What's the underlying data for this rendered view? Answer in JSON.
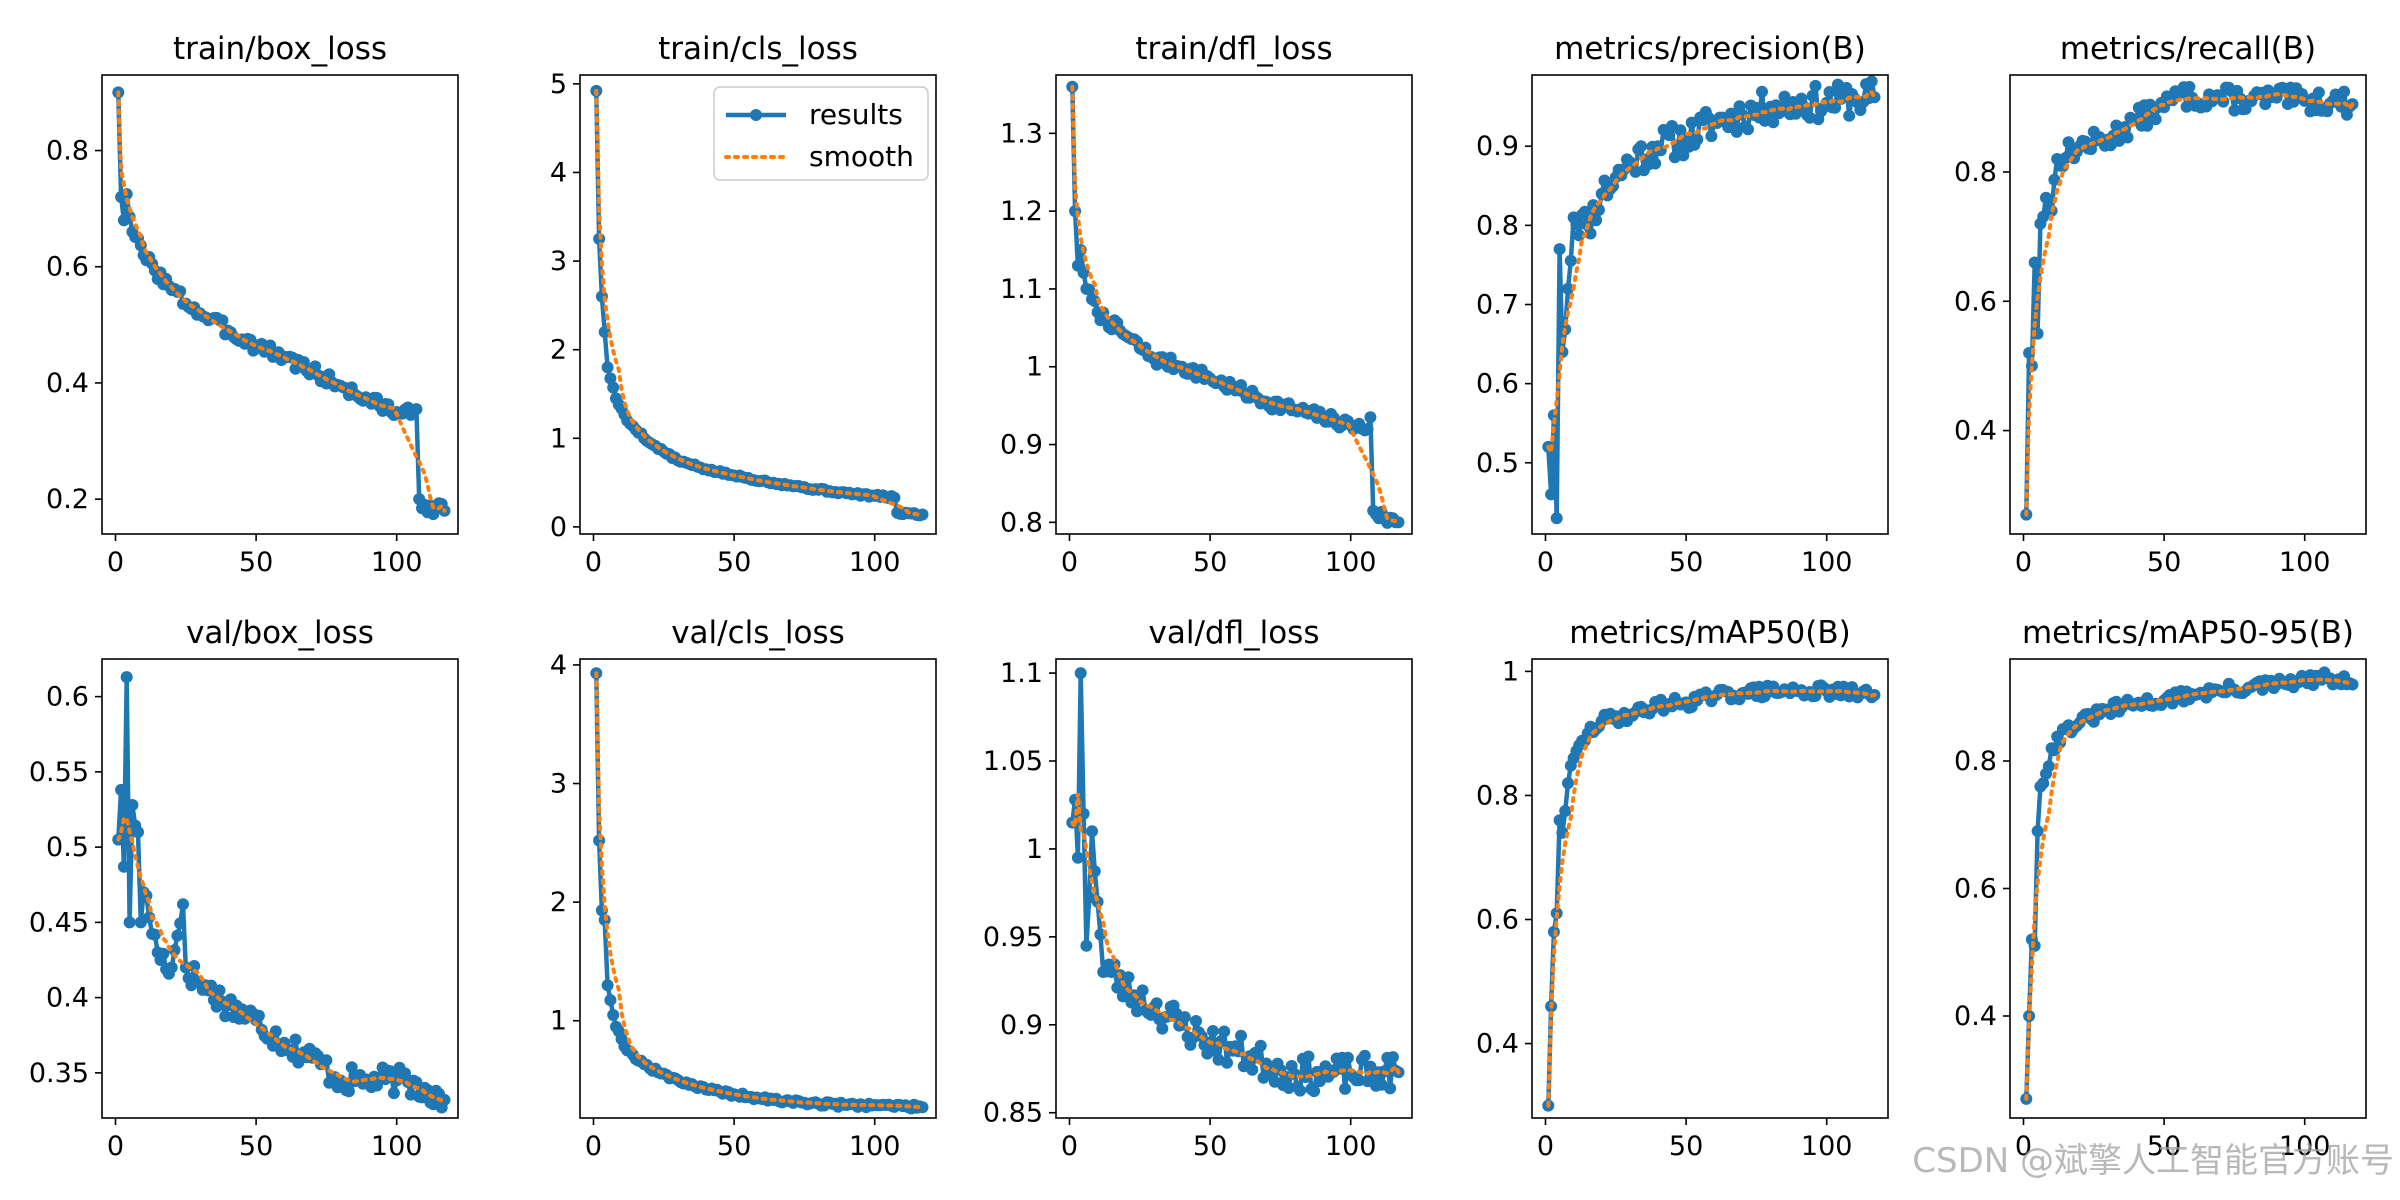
{
  "figure": {
    "legend_labels": [
      "results",
      "smooth"
    ],
    "watermark": "CSDN @斌擎人工智能官方账号",
    "colors": {
      "results": "#1f77b4",
      "smooth": "#ff7f0e",
      "axes": "#000000",
      "background": "#ffffff"
    }
  },
  "chart_data": [
    {
      "type": "line",
      "title": "train/box_loss",
      "xlim": [
        -4.8,
        121.8
      ],
      "ylim": [
        0.14,
        0.93
      ],
      "xticks": [
        0,
        50,
        100
      ],
      "yticks": [
        0.2,
        0.4,
        0.6,
        0.8
      ],
      "x_start": 1,
      "x_end": 117,
      "keypoints": [
        [
          1,
          0.9
        ],
        [
          2,
          0.72
        ],
        [
          3,
          0.68
        ],
        [
          4,
          0.725
        ],
        [
          6,
          0.66
        ],
        [
          10,
          0.62
        ],
        [
          20,
          0.56
        ],
        [
          30,
          0.52
        ],
        [
          40,
          0.49
        ],
        [
          50,
          0.465
        ],
        [
          60,
          0.445
        ],
        [
          70,
          0.42
        ],
        [
          80,
          0.395
        ],
        [
          90,
          0.37
        ],
        [
          100,
          0.35
        ],
        [
          105,
          0.345
        ],
        [
          107,
          0.355
        ],
        [
          108,
          0.2
        ],
        [
          110,
          0.19
        ],
        [
          117,
          0.18
        ]
      ],
      "noise": 0.012,
      "seed": 3,
      "legend": false
    },
    {
      "type": "line",
      "title": "train/cls_loss",
      "xlim": [
        -4.8,
        121.8
      ],
      "ylim": [
        -0.08,
        5.1
      ],
      "xticks": [
        0,
        50,
        100
      ],
      "yticks": [
        0,
        1,
        2,
        3,
        4,
        5
      ],
      "x_start": 1,
      "x_end": 117,
      "keypoints": [
        [
          1,
          4.92
        ],
        [
          2,
          3.25
        ],
        [
          3,
          2.6
        ],
        [
          4,
          2.2
        ],
        [
          5,
          1.8
        ],
        [
          8,
          1.45
        ],
        [
          12,
          1.2
        ],
        [
          20,
          0.95
        ],
        [
          30,
          0.75
        ],
        [
          40,
          0.65
        ],
        [
          50,
          0.58
        ],
        [
          60,
          0.52
        ],
        [
          70,
          0.47
        ],
        [
          80,
          0.42
        ],
        [
          90,
          0.38
        ],
        [
          100,
          0.35
        ],
        [
          107,
          0.33
        ],
        [
          108,
          0.16
        ],
        [
          117,
          0.14
        ]
      ],
      "noise": 0.015,
      "seed": 5,
      "legend": true
    },
    {
      "type": "line",
      "title": "train/dfl_loss",
      "xlim": [
        -4.8,
        121.8
      ],
      "ylim": [
        0.785,
        1.375
      ],
      "xticks": [
        0,
        50,
        100
      ],
      "yticks": [
        0.8,
        0.9,
        1.0,
        1.1,
        1.2,
        1.3
      ],
      "x_start": 1,
      "x_end": 117,
      "keypoints": [
        [
          1,
          1.36
        ],
        [
          2,
          1.2
        ],
        [
          3,
          1.13
        ],
        [
          4,
          1.15
        ],
        [
          6,
          1.1
        ],
        [
          10,
          1.07
        ],
        [
          20,
          1.04
        ],
        [
          30,
          1.01
        ],
        [
          40,
          1.0
        ],
        [
          50,
          0.985
        ],
        [
          60,
          0.97
        ],
        [
          70,
          0.955
        ],
        [
          80,
          0.945
        ],
        [
          90,
          0.935
        ],
        [
          100,
          0.925
        ],
        [
          106,
          0.92
        ],
        [
          107,
          0.935
        ],
        [
          108,
          0.815
        ],
        [
          112,
          0.805
        ],
        [
          117,
          0.8
        ]
      ],
      "noise": 0.008,
      "seed": 7,
      "legend": false
    },
    {
      "type": "line",
      "title": "metrics/precision(B)",
      "xlim": [
        -4.8,
        121.8
      ],
      "ylim": [
        0.41,
        0.99
      ],
      "xticks": [
        0,
        50,
        100
      ],
      "yticks": [
        0.5,
        0.6,
        0.7,
        0.8,
        0.9
      ],
      "x_start": 1,
      "x_end": 117,
      "keypoints": [
        [
          1,
          0.52
        ],
        [
          2,
          0.46
        ],
        [
          3,
          0.56
        ],
        [
          4,
          0.43
        ],
        [
          5,
          0.77
        ],
        [
          6,
          0.64
        ],
        [
          8,
          0.72
        ],
        [
          10,
          0.81
        ],
        [
          15,
          0.8
        ],
        [
          20,
          0.84
        ],
        [
          30,
          0.88
        ],
        [
          40,
          0.9
        ],
        [
          50,
          0.91
        ],
        [
          60,
          0.93
        ],
        [
          70,
          0.94
        ],
        [
          80,
          0.95
        ],
        [
          90,
          0.955
        ],
        [
          100,
          0.955
        ],
        [
          110,
          0.96
        ],
        [
          117,
          0.962
        ]
      ],
      "noise": 0.022,
      "seed": 11,
      "legend": false
    },
    {
      "type": "line",
      "title": "metrics/recall(B)",
      "xlim": [
        -4.8,
        121.8
      ],
      "ylim": [
        0.24,
        0.95
      ],
      "xticks": [
        0,
        50,
        100
      ],
      "yticks": [
        0.4,
        0.6,
        0.8
      ],
      "x_start": 1,
      "x_end": 117,
      "keypoints": [
        [
          1,
          0.27
        ],
        [
          2,
          0.52
        ],
        [
          3,
          0.5
        ],
        [
          4,
          0.66
        ],
        [
          5,
          0.55
        ],
        [
          6,
          0.72
        ],
        [
          8,
          0.76
        ],
        [
          10,
          0.74
        ],
        [
          12,
          0.82
        ],
        [
          20,
          0.84
        ],
        [
          30,
          0.85
        ],
        [
          40,
          0.88
        ],
        [
          50,
          0.9
        ],
        [
          55,
          0.92
        ],
        [
          60,
          0.915
        ],
        [
          70,
          0.915
        ],
        [
          80,
          0.91
        ],
        [
          90,
          0.915
        ],
        [
          100,
          0.91
        ],
        [
          110,
          0.91
        ],
        [
          117,
          0.905
        ]
      ],
      "noise": 0.018,
      "seed": 13,
      "legend": false
    },
    {
      "type": "line",
      "title": "val/box_loss",
      "xlim": [
        -4.8,
        121.8
      ],
      "ylim": [
        0.32,
        0.625
      ],
      "xticks": [
        0,
        50,
        100
      ],
      "yticks": [
        0.35,
        0.4,
        0.45,
        0.5,
        0.55,
        0.6
      ],
      "x_start": 1,
      "x_end": 117,
      "keypoints": [
        [
          1,
          0.505
        ],
        [
          2,
          0.538
        ],
        [
          3,
          0.487
        ],
        [
          4,
          0.613
        ],
        [
          5,
          0.45
        ],
        [
          6,
          0.528
        ],
        [
          8,
          0.51
        ],
        [
          9,
          0.45
        ],
        [
          10,
          0.47
        ],
        [
          15,
          0.43
        ],
        [
          20,
          0.42
        ],
        [
          24,
          0.462
        ],
        [
          25,
          0.42
        ],
        [
          30,
          0.41
        ],
        [
          40,
          0.395
        ],
        [
          50,
          0.385
        ],
        [
          60,
          0.37
        ],
        [
          70,
          0.36
        ],
        [
          80,
          0.345
        ],
        [
          90,
          0.345
        ],
        [
          100,
          0.345
        ],
        [
          110,
          0.34
        ],
        [
          117,
          0.332
        ]
      ],
      "noise": 0.009,
      "seed": 17,
      "legend": false
    },
    {
      "type": "line",
      "title": "val/cls_loss",
      "xlim": [
        -4.8,
        121.8
      ],
      "ylim": [
        0.18,
        4.05
      ],
      "xticks": [
        0,
        50,
        100
      ],
      "yticks": [
        1,
        2,
        3,
        4
      ],
      "x_start": 1,
      "x_end": 117,
      "keypoints": [
        [
          1,
          3.93
        ],
        [
          2,
          2.52
        ],
        [
          3,
          1.93
        ],
        [
          4,
          1.85
        ],
        [
          5,
          1.3
        ],
        [
          8,
          0.95
        ],
        [
          12,
          0.75
        ],
        [
          20,
          0.6
        ],
        [
          30,
          0.5
        ],
        [
          40,
          0.42
        ],
        [
          50,
          0.38
        ],
        [
          60,
          0.34
        ],
        [
          70,
          0.32
        ],
        [
          80,
          0.3
        ],
        [
          90,
          0.29
        ],
        [
          100,
          0.29
        ],
        [
          110,
          0.28
        ],
        [
          117,
          0.27
        ]
      ],
      "noise": 0.018,
      "seed": 19,
      "legend": false
    },
    {
      "type": "line",
      "title": "val/dfl_loss",
      "xlim": [
        -4.8,
        121.8
      ],
      "ylim": [
        0.847,
        1.108
      ],
      "xticks": [
        0,
        50,
        100
      ],
      "yticks": [
        0.85,
        0.9,
        0.95,
        1.0,
        1.05,
        1.1
      ],
      "x_start": 1,
      "x_end": 117,
      "keypoints": [
        [
          1,
          1.015
        ],
        [
          2,
          1.028
        ],
        [
          3,
          0.995
        ],
        [
          4,
          1.1
        ],
        [
          5,
          1.02
        ],
        [
          6,
          0.945
        ],
        [
          8,
          1.01
        ],
        [
          10,
          0.97
        ],
        [
          12,
          0.93
        ],
        [
          15,
          0.93
        ],
        [
          20,
          0.92
        ],
        [
          25,
          0.915
        ],
        [
          30,
          0.91
        ],
        [
          40,
          0.9
        ],
        [
          50,
          0.89
        ],
        [
          60,
          0.885
        ],
        [
          70,
          0.878
        ],
        [
          80,
          0.872
        ],
        [
          90,
          0.872
        ],
        [
          100,
          0.872
        ],
        [
          110,
          0.873
        ],
        [
          117,
          0.873
        ]
      ],
      "noise": 0.01,
      "seed": 23,
      "legend": false
    },
    {
      "type": "line",
      "title": "metrics/mAP50(B)",
      "xlim": [
        -4.8,
        121.8
      ],
      "ylim": [
        0.28,
        1.02
      ],
      "xticks": [
        0,
        50,
        100
      ],
      "yticks": [
        0.4,
        0.6,
        0.8,
        1.0
      ],
      "x_start": 1,
      "x_end": 117,
      "keypoints": [
        [
          1,
          0.3
        ],
        [
          2,
          0.46
        ],
        [
          3,
          0.58
        ],
        [
          4,
          0.61
        ],
        [
          5,
          0.76
        ],
        [
          6,
          0.74
        ],
        [
          8,
          0.82
        ],
        [
          10,
          0.86
        ],
        [
          15,
          0.9
        ],
        [
          20,
          0.92
        ],
        [
          30,
          0.93
        ],
        [
          40,
          0.945
        ],
        [
          50,
          0.95
        ],
        [
          60,
          0.96
        ],
        [
          70,
          0.965
        ],
        [
          80,
          0.968
        ],
        [
          90,
          0.968
        ],
        [
          100,
          0.968
        ],
        [
          110,
          0.965
        ],
        [
          117,
          0.962
        ]
      ],
      "noise": 0.01,
      "seed": 29,
      "legend": false
    },
    {
      "type": "line",
      "title": "metrics/mAP50-95(B)",
      "xlim": [
        -4.8,
        121.8
      ],
      "ylim": [
        0.24,
        0.96
      ],
      "xticks": [
        0,
        50,
        100
      ],
      "yticks": [
        0.4,
        0.6,
        0.8
      ],
      "x_start": 1,
      "x_end": 117,
      "keypoints": [
        [
          1,
          0.27
        ],
        [
          2,
          0.4
        ],
        [
          3,
          0.52
        ],
        [
          4,
          0.51
        ],
        [
          5,
          0.69
        ],
        [
          6,
          0.76
        ],
        [
          8,
          0.78
        ],
        [
          10,
          0.82
        ],
        [
          15,
          0.85
        ],
        [
          20,
          0.86
        ],
        [
          30,
          0.88
        ],
        [
          40,
          0.89
        ],
        [
          50,
          0.895
        ],
        [
          60,
          0.905
        ],
        [
          70,
          0.91
        ],
        [
          80,
          0.915
        ],
        [
          90,
          0.92
        ],
        [
          100,
          0.925
        ],
        [
          108,
          0.93
        ],
        [
          117,
          0.92
        ]
      ],
      "noise": 0.01,
      "seed": 31,
      "legend": false
    }
  ]
}
